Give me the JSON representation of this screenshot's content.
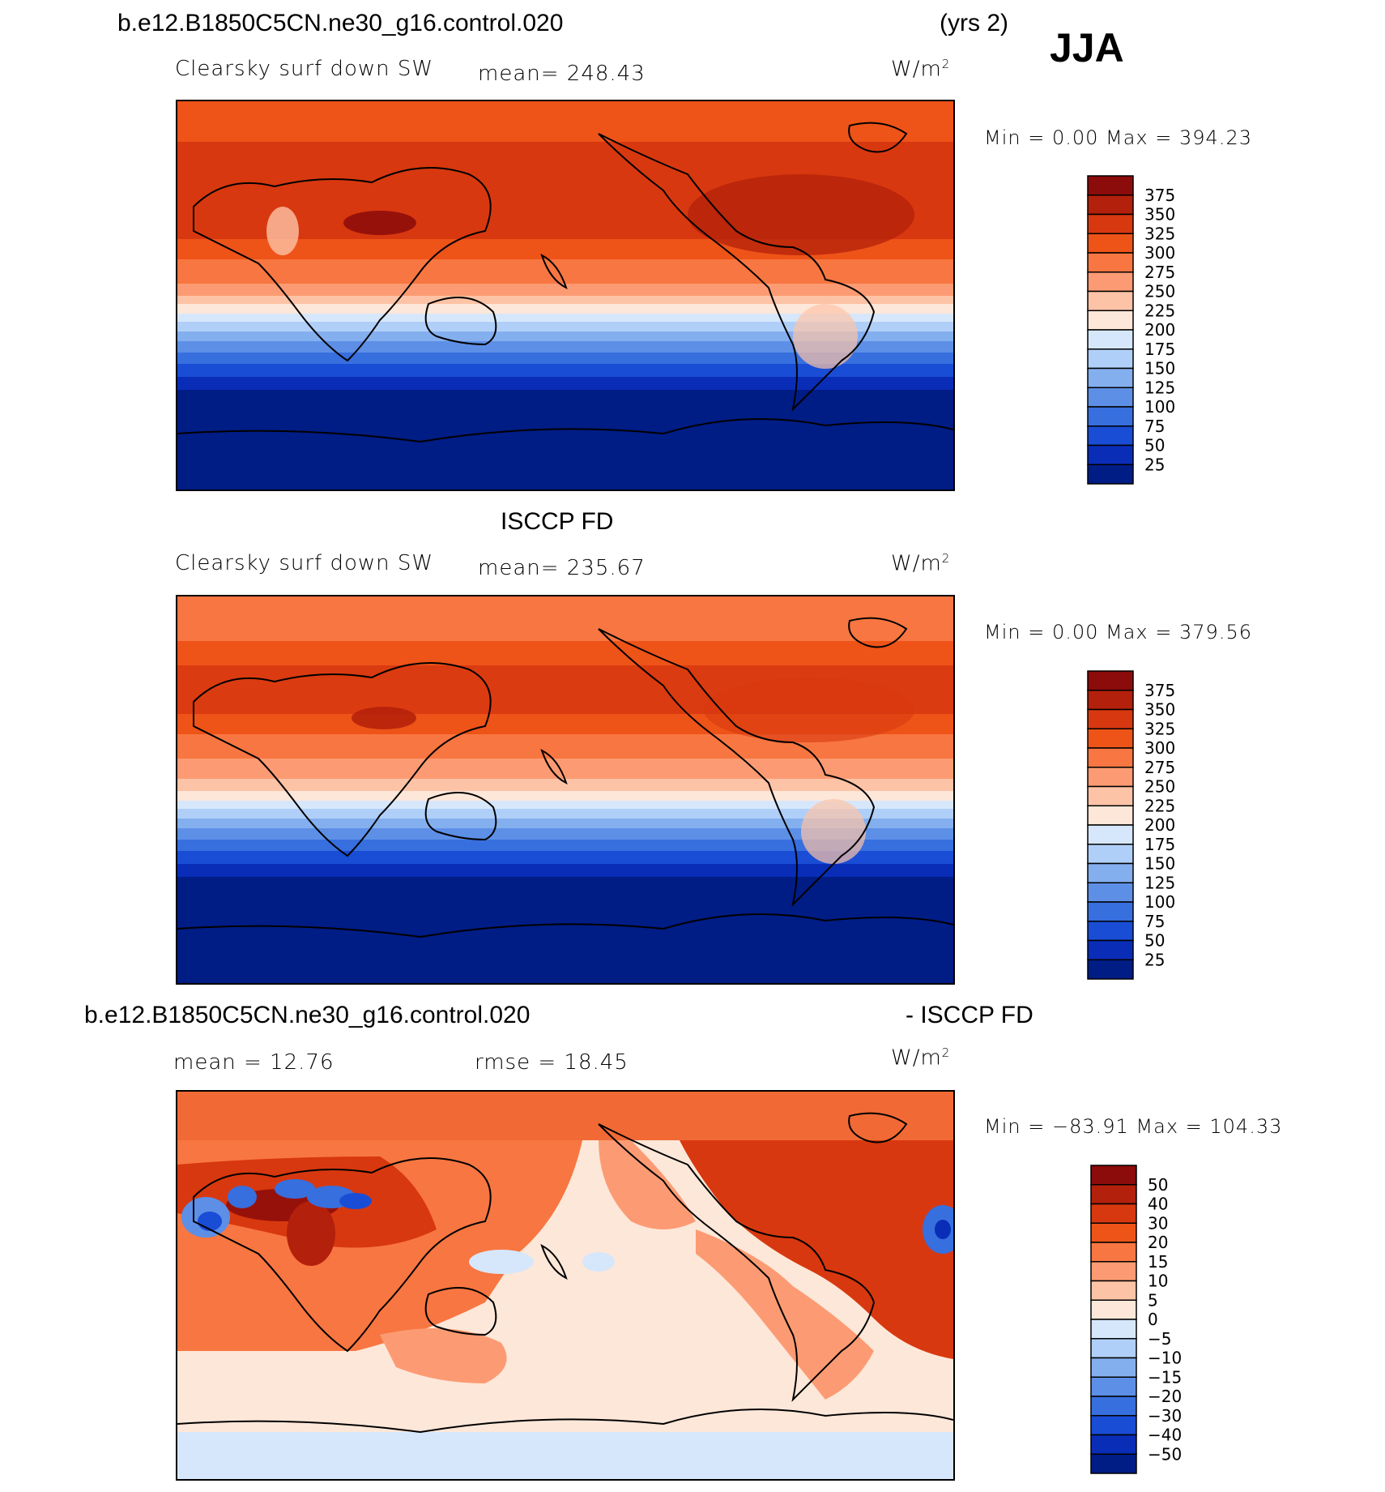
{
  "header": {
    "case_name": "b.e12.B1850C5CN.ne30_g16.control.020",
    "years": "(yrs 2)",
    "season": "JJA"
  },
  "panels": [
    {
      "id": "model",
      "title": "",
      "variable": "Clearsky surf down SW",
      "stat1": "mean= 248.43",
      "stat2": "",
      "units": "W/m",
      "units_sup": "2",
      "minmax": "Min =    0.00 Max = 394.23",
      "legend": {
        "labels": [
          "375",
          "350",
          "325",
          "300",
          "275",
          "250",
          "225",
          "200",
          "175",
          "150",
          "125",
          "100",
          "75",
          "50",
          "25"
        ],
        "colors": [
          "#8c0b0b",
          "#b3200b",
          "#d8380f",
          "#ee5318",
          "#f87641",
          "#fc9b73",
          "#fdc3a6",
          "#fde7d9",
          "#d6e7fb",
          "#b0cff8",
          "#84afef",
          "#5d8fe6",
          "#376fde",
          "#1a4dd5",
          "#0a2db8",
          "#001c85"
        ]
      }
    },
    {
      "id": "obs",
      "title": "ISCCP FD",
      "variable": "Clearsky surf down SW",
      "stat1": "mean= 235.67",
      "stat2": "",
      "units": "W/m",
      "units_sup": "2",
      "minmax": "Min =    0.00 Max = 379.56",
      "legend": {
        "labels": [
          "375",
          "350",
          "325",
          "300",
          "275",
          "250",
          "225",
          "200",
          "175",
          "150",
          "125",
          "100",
          "75",
          "50",
          "25"
        ],
        "colors": [
          "#8c0b0b",
          "#b3200b",
          "#d8380f",
          "#ee5318",
          "#f87641",
          "#fc9b73",
          "#fdc3a6",
          "#fde7d9",
          "#d6e7fb",
          "#b0cff8",
          "#84afef",
          "#5d8fe6",
          "#376fde",
          "#1a4dd5",
          "#0a2db8",
          "#001c85"
        ]
      }
    },
    {
      "id": "diff",
      "title_left": "b.e12.B1850C5CN.ne30_g16.control.020",
      "title_right": "- ISCCP FD",
      "variable": "",
      "stat1": "mean =   12.76",
      "stat2": "rmse =   18.45",
      "units": "W/m",
      "units_sup": "2",
      "minmax": "Min = −83.91 Max = 104.33",
      "legend": {
        "labels": [
          "50",
          "40",
          "30",
          "20",
          "15",
          "10",
          "5",
          "0",
          "−5",
          "−10",
          "−15",
          "−20",
          "−30",
          "−40",
          "−50"
        ],
        "colors": [
          "#8c0b0b",
          "#b3200b",
          "#d8380f",
          "#ee5318",
          "#f87641",
          "#fc9b73",
          "#fdc3a6",
          "#fde7d9",
          "#d6e7fb",
          "#b0cff8",
          "#84afef",
          "#5d8fe6",
          "#376fde",
          "#1a4dd5",
          "#0a2db8",
          "#001c85"
        ]
      }
    }
  ]
}
